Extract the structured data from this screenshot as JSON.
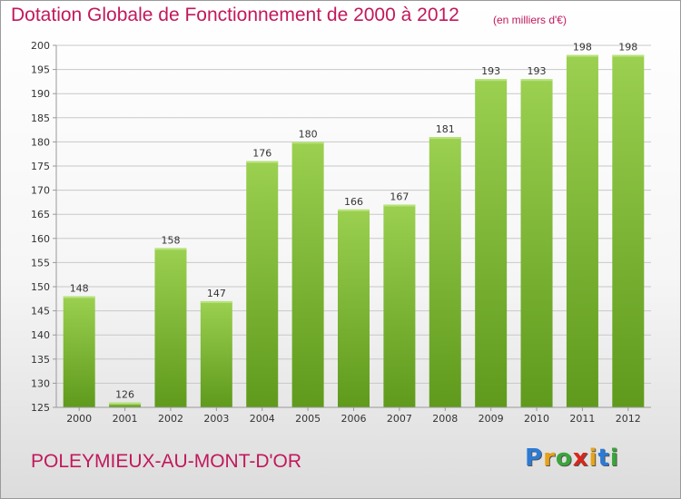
{
  "header": {
    "title": "Dotation Globale de Fonctionnement de 2000 à 2012",
    "unit": "(en milliers d'€)"
  },
  "footer": {
    "commune": "POLEYMIEUX-AU-MONT-D'OR",
    "logo": "Proxiti"
  },
  "colors": {
    "title": "#c2185b",
    "bar_top": "#9bd050",
    "bar_bottom": "#5f9a1c",
    "grid": "#c8c8c8"
  },
  "chart_data": {
    "type": "bar",
    "categories": [
      "2000",
      "2001",
      "2002",
      "2003",
      "2004",
      "2005",
      "2006",
      "2007",
      "2008",
      "2009",
      "2010",
      "2011",
      "2012"
    ],
    "values": [
      148,
      126,
      158,
      147,
      176,
      180,
      166,
      167,
      181,
      193,
      193,
      198,
      198
    ],
    "value_labels": [
      "148",
      "126",
      "158",
      "147",
      "176",
      "180",
      "166",
      "167",
      "181",
      "193",
      "193",
      "198",
      "198"
    ],
    "title": "Dotation Globale de Fonctionnement de 2000 à 2012",
    "subtitle": "(en milliers d'€)",
    "xlabel": "",
    "ylabel": "",
    "ylim": [
      125,
      200
    ],
    "yticks": [
      125,
      130,
      135,
      140,
      145,
      150,
      155,
      160,
      165,
      170,
      175,
      180,
      185,
      190,
      195,
      200
    ],
    "ytick_labels": [
      "125",
      "130",
      "135",
      "140",
      "145",
      "150",
      "155",
      "160",
      "165",
      "170",
      "175",
      "180",
      "185",
      "190",
      "195",
      "200"
    ],
    "grid": true,
    "legend": "none"
  }
}
